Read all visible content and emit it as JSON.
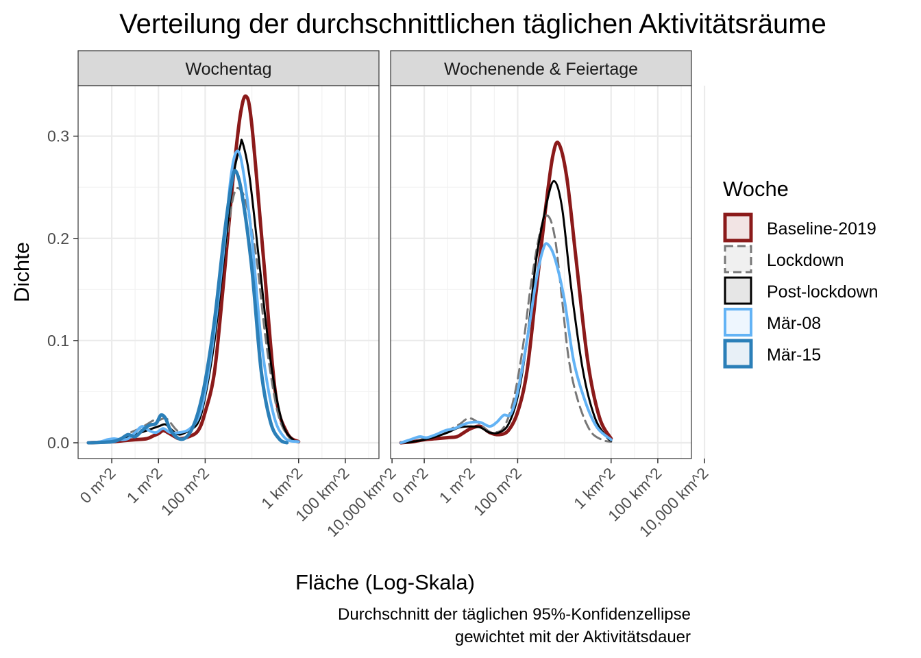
{
  "chart_data": {
    "type": "line",
    "title": "Verteilung der durchschnittlichen täglichen Aktivitätsräume",
    "xlabel": "Fläche (Log-Skala)",
    "ylabel": "Dichte",
    "caption_line1": "Durchschnitt der täglichen 95%-Konfidenzellipse",
    "caption_line2": "gewichtet mit der Aktivitätsdauer",
    "x_scale": "log10",
    "x_unit": "m^2",
    "xlim": [
      0.001,
      1000000000
    ],
    "ylim": [
      0,
      0.34
    ],
    "x_ticks": [
      {
        "value": 0.01,
        "label": "0 m^2"
      },
      {
        "value": 1,
        "label": "1 m^2"
      },
      {
        "value": 100,
        "label": "100 m^2"
      },
      {
        "value": 1000000,
        "label": "1 km^2"
      },
      {
        "value": 100000000,
        "label": "100 km^2"
      },
      {
        "value": 10000000000,
        "label": "10,000 km^2"
      }
    ],
    "y_ticks": [
      {
        "value": 0.0,
        "label": "0.0"
      },
      {
        "value": 0.1,
        "label": "0.1"
      },
      {
        "value": 0.2,
        "label": "0.2"
      },
      {
        "value": 0.3,
        "label": "0.3"
      }
    ],
    "grid": true,
    "legend_title": "Woche",
    "legend_position": "right",
    "series_styles": [
      {
        "name": "Baseline-2019",
        "color": "#8B1A1A",
        "fill": "#F2E4E4",
        "dash": "solid",
        "width": 5
      },
      {
        "name": "Lockdown",
        "color": "#777777",
        "fill": "#F0F0F0",
        "dash": "dashed",
        "width": 3
      },
      {
        "name": "Post-lockdown",
        "color": "#000000",
        "fill": "#E6E6E6",
        "dash": "solid",
        "width": 3
      },
      {
        "name": "Mär-08",
        "color": "#63B3F5",
        "fill": "#EEF6FE",
        "dash": "solid",
        "width": 4
      },
      {
        "name": "Mär-15",
        "color": "#2B7FB8",
        "fill": "#E8F0F7",
        "dash": "solid",
        "width": 5
      }
    ],
    "panels": [
      {
        "label": "Wochentag",
        "series": [
          {
            "name": "Baseline-2019",
            "points": [
              [
                -3,
                0
              ],
              [
                -2,
                0.001
              ],
              [
                -1.5,
                0.002
              ],
              [
                -1,
                0.003
              ],
              [
                -0.5,
                0.004
              ],
              [
                -0.2,
                0.007
              ],
              [
                0,
                0.009
              ],
              [
                0.2,
                0.012
              ],
              [
                0.4,
                0.01
              ],
              [
                0.7,
                0.006
              ],
              [
                0.9,
                0.004
              ],
              [
                1.3,
                0.006
              ],
              [
                1.7,
                0.012
              ],
              [
                2,
                0.03
              ],
              [
                2.4,
                0.07
              ],
              [
                2.8,
                0.16
              ],
              [
                3.2,
                0.26
              ],
              [
                3.5,
                0.32
              ],
              [
                3.75,
                0.339
              ],
              [
                4,
                0.31
              ],
              [
                4.5,
                0.18
              ],
              [
                5,
                0.05
              ],
              [
                5.5,
                0.01
              ],
              [
                6,
                0.001
              ]
            ]
          },
          {
            "name": "Lockdown",
            "points": [
              [
                -3,
                0
              ],
              [
                -2,
                0.002
              ],
              [
                -1.5,
                0.005
              ],
              [
                -1.2,
                0.01
              ],
              [
                -0.8,
                0.014
              ],
              [
                -0.5,
                0.018
              ],
              [
                -0.2,
                0.022
              ],
              [
                0,
                0.022
              ],
              [
                0.3,
                0.024
              ],
              [
                0.5,
                0.02
              ],
              [
                0.8,
                0.012
              ],
              [
                1.1,
                0.01
              ],
              [
                1.5,
                0.018
              ],
              [
                2,
                0.06
              ],
              [
                2.4,
                0.12
              ],
              [
                2.8,
                0.18
              ],
              [
                3.2,
                0.24
              ],
              [
                3.5,
                0.248
              ],
              [
                3.8,
                0.23
              ],
              [
                4.2,
                0.18
              ],
              [
                4.6,
                0.1
              ],
              [
                5.1,
                0.03
              ],
              [
                5.6,
                0.005
              ],
              [
                6,
                0.001
              ]
            ]
          },
          {
            "name": "Post-lockdown",
            "points": [
              [
                -3,
                0
              ],
              [
                -2,
                0.002
              ],
              [
                -1.5,
                0.004
              ],
              [
                -1,
                0.008
              ],
              [
                -0.5,
                0.012
              ],
              [
                0,
                0.016
              ],
              [
                0.3,
                0.018
              ],
              [
                0.6,
                0.012
              ],
              [
                0.9,
                0.008
              ],
              [
                1.3,
                0.012
              ],
              [
                1.7,
                0.02
              ],
              [
                2,
                0.045
              ],
              [
                2.4,
                0.1
              ],
              [
                2.8,
                0.18
              ],
              [
                3.2,
                0.26
              ],
              [
                3.5,
                0.29
              ],
              [
                3.6,
                0.294
              ],
              [
                3.9,
                0.26
              ],
              [
                4.3,
                0.18
              ],
              [
                4.8,
                0.08
              ],
              [
                5.3,
                0.02
              ],
              [
                5.8,
                0.002
              ],
              [
                6,
                0.001
              ]
            ]
          },
          {
            "name": "Mär-08",
            "points": [
              [
                -3,
                0
              ],
              [
                -2.5,
                0.001
              ],
              [
                -2.2,
                0.003
              ],
              [
                -1.9,
                0.004
              ],
              [
                -1.6,
                0.003
              ],
              [
                -1.3,
                0.004
              ],
              [
                -1,
                0.01
              ],
              [
                -0.7,
                0.016
              ],
              [
                -0.4,
                0.012
              ],
              [
                -0.1,
                0.01
              ],
              [
                0.2,
                0.014
              ],
              [
                0.5,
                0.01
              ],
              [
                0.9,
                0.01
              ],
              [
                1.3,
                0.013
              ],
              [
                1.7,
                0.024
              ],
              [
                2,
                0.05
              ],
              [
                2.4,
                0.11
              ],
              [
                2.8,
                0.19
              ],
              [
                3.1,
                0.26
              ],
              [
                3.35,
                0.285
              ],
              [
                3.6,
                0.27
              ],
              [
                4,
                0.2
              ],
              [
                4.4,
                0.1
              ],
              [
                4.9,
                0.03
              ],
              [
                5.4,
                0.005
              ],
              [
                6,
                0.001
              ]
            ]
          },
          {
            "name": "Mär-15",
            "points": [
              [
                -3,
                0
              ],
              [
                -2,
                0.001
              ],
              [
                -1.6,
                0.004
              ],
              [
                -1.3,
                0.008
              ],
              [
                -1,
                0.006
              ],
              [
                -0.7,
                0.012
              ],
              [
                -0.4,
                0.017
              ],
              [
                -0.1,
                0.019
              ],
              [
                0.1,
                0.027
              ],
              [
                0.3,
                0.024
              ],
              [
                0.5,
                0.013
              ],
              [
                0.8,
                0.005
              ],
              [
                1.1,
                0.004
              ],
              [
                1.4,
                0.012
              ],
              [
                1.7,
                0.03
              ],
              [
                2,
                0.06
              ],
              [
                2.4,
                0.12
              ],
              [
                2.8,
                0.2
              ],
              [
                3.1,
                0.25
              ],
              [
                3.3,
                0.266
              ],
              [
                3.6,
                0.24
              ],
              [
                4,
                0.17
              ],
              [
                4.4,
                0.07
              ],
              [
                4.8,
                0.02
              ],
              [
                5.2,
                0.003
              ],
              [
                5.5,
                0
              ]
            ]
          }
        ]
      },
      {
        "label": "Wochenende & Feiertage",
        "series": [
          {
            "name": "Baseline-2019",
            "points": [
              [
                -3,
                0
              ],
              [
                -2.5,
                0.001
              ],
              [
                -2,
                0.003
              ],
              [
                -1.5,
                0.004
              ],
              [
                -1,
                0.005
              ],
              [
                -0.6,
                0.006
              ],
              [
                -0.3,
                0.01
              ],
              [
                0,
                0.014
              ],
              [
                0.4,
                0.016
              ],
              [
                0.8,
                0.01
              ],
              [
                1.2,
                0.008
              ],
              [
                1.6,
                0.012
              ],
              [
                2,
                0.03
              ],
              [
                2.4,
                0.07
              ],
              [
                2.8,
                0.15
              ],
              [
                3.2,
                0.23
              ],
              [
                3.5,
                0.28
              ],
              [
                3.75,
                0.293
              ],
              [
                4.1,
                0.26
              ],
              [
                4.5,
                0.18
              ],
              [
                5,
                0.08
              ],
              [
                5.5,
                0.025
              ],
              [
                6,
                0.004
              ]
            ]
          },
          {
            "name": "Lockdown",
            "points": [
              [
                -3,
                0
              ],
              [
                -2.5,
                0.001
              ],
              [
                -2,
                0.004
              ],
              [
                -1.5,
                0.008
              ],
              [
                -1,
                0.012
              ],
              [
                -0.5,
                0.018
              ],
              [
                -0.1,
                0.024
              ],
              [
                0.3,
                0.02
              ],
              [
                0.7,
                0.012
              ],
              [
                1,
                0.01
              ],
              [
                1.4,
                0.015
              ],
              [
                1.8,
                0.04
              ],
              [
                2.2,
                0.09
              ],
              [
                2.6,
                0.16
              ],
              [
                3,
                0.21
              ],
              [
                3.3,
                0.222
              ],
              [
                3.6,
                0.2
              ],
              [
                3.9,
                0.14
              ],
              [
                4.2,
                0.08
              ],
              [
                4.6,
                0.04
              ],
              [
                5.1,
                0.012
              ],
              [
                5.6,
                0.003
              ],
              [
                6,
                0.001
              ]
            ]
          },
          {
            "name": "Post-lockdown",
            "points": [
              [
                -3,
                0
              ],
              [
                -2.5,
                0.001
              ],
              [
                -2,
                0.003
              ],
              [
                -1.5,
                0.006
              ],
              [
                -1,
                0.01
              ],
              [
                -0.5,
                0.015
              ],
              [
                0,
                0.016
              ],
              [
                0.4,
                0.015
              ],
              [
                0.8,
                0.01
              ],
              [
                1.2,
                0.01
              ],
              [
                1.6,
                0.018
              ],
              [
                2,
                0.045
              ],
              [
                2.4,
                0.1
              ],
              [
                2.8,
                0.18
              ],
              [
                3.2,
                0.23
              ],
              [
                3.55,
                0.256
              ],
              [
                3.9,
                0.23
              ],
              [
                4.3,
                0.15
              ],
              [
                4.8,
                0.07
              ],
              [
                5.3,
                0.025
              ],
              [
                5.8,
                0.006
              ],
              [
                6,
                0.002
              ]
            ]
          },
          {
            "name": "Mär-08",
            "points": [
              [
                -3,
                0
              ],
              [
                -2.6,
                0.003
              ],
              [
                -2.2,
                0.006
              ],
              [
                -1.9,
                0.005
              ],
              [
                -1.5,
                0.008
              ],
              [
                -1.1,
                0.012
              ],
              [
                -0.7,
                0.014
              ],
              [
                -0.3,
                0.018
              ],
              [
                0,
                0.02
              ],
              [
                0.4,
                0.02
              ],
              [
                0.8,
                0.016
              ],
              [
                1.1,
                0.02
              ],
              [
                1.4,
                0.027
              ],
              [
                1.7,
                0.028
              ],
              [
                2,
                0.05
              ],
              [
                2.4,
                0.1
              ],
              [
                2.8,
                0.16
              ],
              [
                3.1,
                0.19
              ],
              [
                3.3,
                0.194
              ],
              [
                3.6,
                0.18
              ],
              [
                4,
                0.14
              ],
              [
                4.4,
                0.08
              ],
              [
                4.9,
                0.04
              ],
              [
                5.4,
                0.015
              ],
              [
                6,
                0.003
              ]
            ]
          }
        ]
      }
    ]
  }
}
